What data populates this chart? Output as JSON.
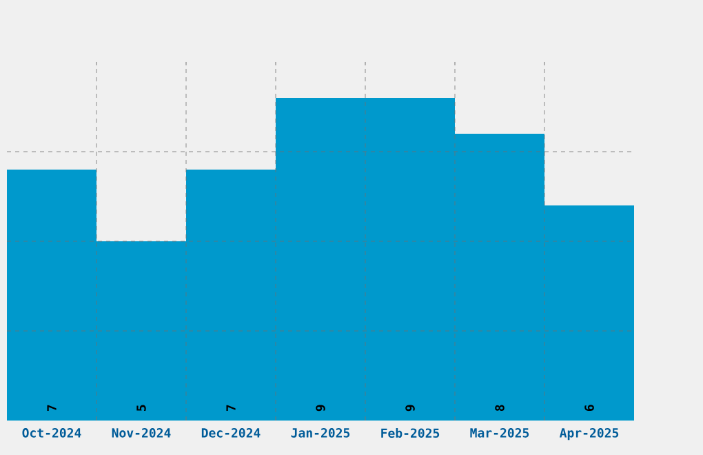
{
  "chart_data": {
    "type": "bar",
    "categories": [
      "Oct-2024",
      "Nov-2024",
      "Dec-2024",
      "Jan-2025",
      "Feb-2025",
      "Mar-2025",
      "Apr-2025"
    ],
    "values": [
      7,
      5,
      7,
      9,
      9,
      8,
      6
    ],
    "color": "#0099cc",
    "data_labels": true,
    "ylim": [
      0,
      10
    ],
    "yticks": [
      {
        "value": 2.5,
        "label": null
      },
      {
        "value": 5,
        "label": null
      },
      {
        "value": 7.5,
        "label": null
      }
    ],
    "grid": true,
    "tick_labels": "x"
  }
}
